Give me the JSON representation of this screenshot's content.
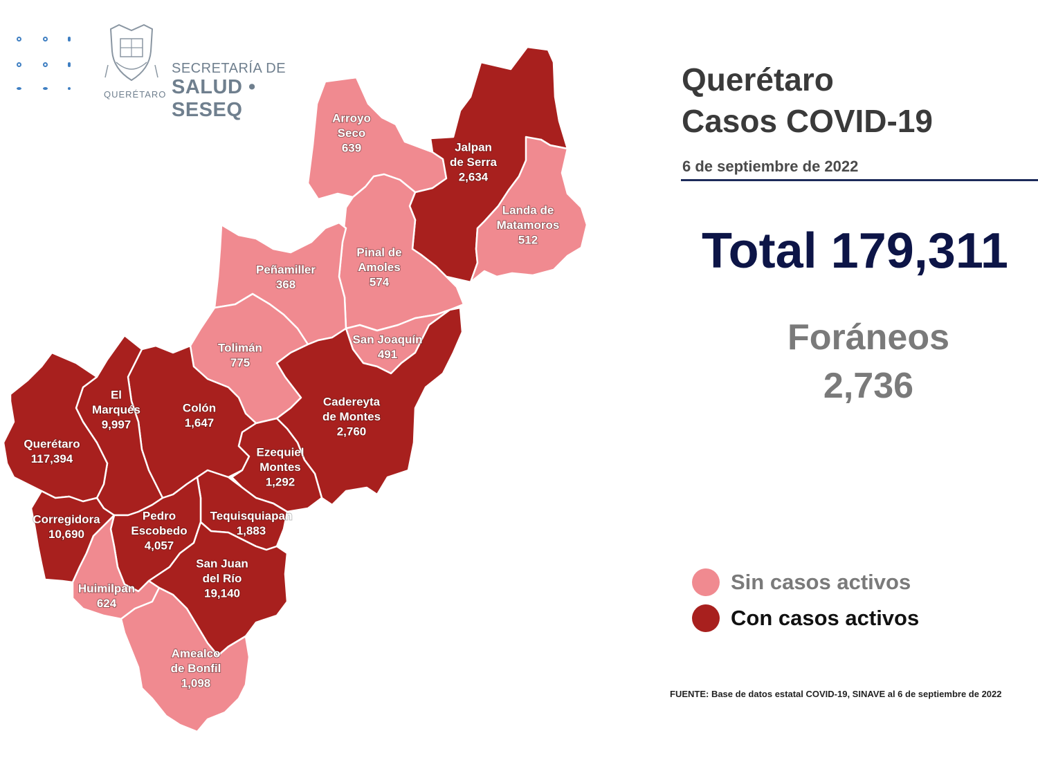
{
  "header": {
    "org_line1": "SECRETARÍA DE",
    "org_line2": "SALUD • SESEQ",
    "org_state": "QUERÉTARO",
    "crest_icon": "state-crest-icon"
  },
  "title": {
    "line1": "Querétaro",
    "line2": "Casos COVID-19",
    "date": "6 de septiembre de 2022"
  },
  "totals": {
    "total_label": "Total 179,311",
    "foraneos_label": "Foráneos",
    "foraneos_value": "2,736"
  },
  "colors": {
    "sin_casos": "#f08a90",
    "con_casos": "#a8201e",
    "title_total": "#0d1547",
    "logo_gray": "#6f7f8e"
  },
  "legend": {
    "sin": "Sin casos activos",
    "con": "Con casos activos"
  },
  "source": "FUENTE: Base de datos estatal  COVID-19,  SINAVE  al 6 de septiembre de 2022",
  "municipalities": [
    {
      "id": "arroyo-seco",
      "line1": "Arroyo",
      "line2": "Seco",
      "cases": "639",
      "status": "sin"
    },
    {
      "id": "jalpan",
      "line1": "Jalpan",
      "line2": "de Serra",
      "cases": "2,634",
      "status": "con"
    },
    {
      "id": "landa",
      "line1": "Landa de",
      "line2": "Matamoros",
      "cases": "512",
      "status": "sin"
    },
    {
      "id": "pinal",
      "line1": "Pinal de",
      "line2": "Amoles",
      "cases": "574",
      "status": "sin"
    },
    {
      "id": "penamiller",
      "line1": "Peñamiller",
      "line2": "",
      "cases": "368",
      "status": "sin"
    },
    {
      "id": "san-joaquin",
      "line1": "San Joaquín",
      "line2": "",
      "cases": "491",
      "status": "sin"
    },
    {
      "id": "toliman",
      "line1": "Tolimán",
      "line2": "",
      "cases": "775",
      "status": "sin"
    },
    {
      "id": "cadereyta",
      "line1": "Cadereyta",
      "line2": "de Montes",
      "cases": "2,760",
      "status": "con"
    },
    {
      "id": "colon",
      "line1": "Colón",
      "line2": "",
      "cases": "1,647",
      "status": "con"
    },
    {
      "id": "el-marques",
      "line1": "El",
      "line2": "Marqués",
      "cases": "9,997",
      "status": "con"
    },
    {
      "id": "queretaro",
      "line1": "Querétaro",
      "line2": "",
      "cases": "117,394",
      "status": "con"
    },
    {
      "id": "ezequiel",
      "line1": "Ezequiel",
      "line2": "Montes",
      "cases": "1,292",
      "status": "con"
    },
    {
      "id": "tequisquiapan",
      "line1": "Tequisquiapan",
      "line2": "",
      "cases": "1,883",
      "status": "con"
    },
    {
      "id": "corregidora",
      "line1": "Corregidora",
      "line2": "",
      "cases": "10,690",
      "status": "con"
    },
    {
      "id": "pedro-escobedo",
      "line1": "Pedro",
      "line2": "Escobedo",
      "cases": "4,057",
      "status": "con"
    },
    {
      "id": "san-juan",
      "line1": "San Juan",
      "line2": "del Río",
      "cases": "19,140",
      "status": "con"
    },
    {
      "id": "huimilpan",
      "line1": "Huimilpan",
      "line2": "",
      "cases": "624",
      "status": "sin"
    },
    {
      "id": "amealco",
      "line1": "Amealco",
      "line2": "de Bonfil",
      "cases": "1,098",
      "status": "sin"
    }
  ]
}
